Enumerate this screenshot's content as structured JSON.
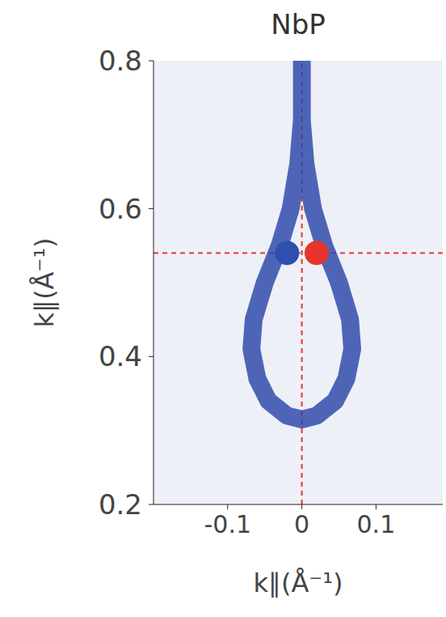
{
  "chart_data": {
    "type": "scatter",
    "title": "NbP",
    "x_label": "k∥(Å⁻¹)",
    "y_label": "k∥(Å⁻¹)",
    "xlim": [
      -0.2,
      0.19
    ],
    "ylim": [
      0.2,
      0.8
    ],
    "xticks": [
      -0.1,
      0,
      0.1
    ],
    "yticks": [
      0.2,
      0.4,
      0.6,
      0.8
    ],
    "grid": false,
    "contour": {
      "color": "#2b45a8",
      "x": [
        0.0,
        0.0,
        -0.005,
        -0.015,
        -0.03,
        -0.05,
        -0.065,
        -0.068,
        -0.06,
        -0.045,
        -0.02,
        0.0,
        0.02,
        0.045,
        0.06,
        0.068,
        0.065,
        0.05,
        0.03,
        0.015,
        0.005,
        0.0,
        0.0
      ],
      "y": [
        0.8,
        0.72,
        0.66,
        0.6,
        0.55,
        0.5,
        0.45,
        0.41,
        0.37,
        0.34,
        0.32,
        0.315,
        0.32,
        0.34,
        0.37,
        0.41,
        0.45,
        0.5,
        0.55,
        0.6,
        0.66,
        0.72,
        0.8
      ]
    },
    "crosshair": {
      "x": 0,
      "y": 0.54,
      "color": "#e8342a",
      "line_style": "dashed"
    },
    "points": {
      "x": [
        -0.02,
        0.02
      ],
      "y": [
        0.54,
        0.54
      ],
      "colors": [
        "#2c4fb0",
        "#e8342a"
      ]
    }
  }
}
